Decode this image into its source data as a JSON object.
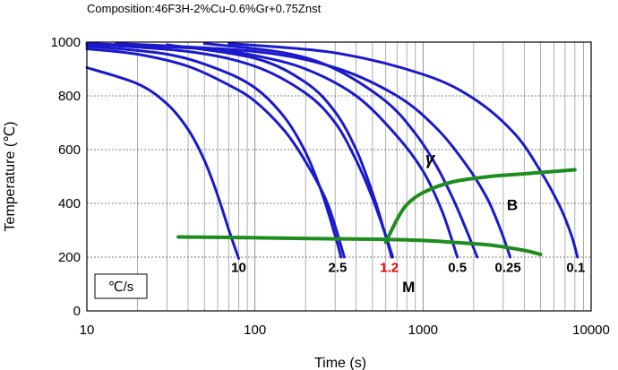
{
  "chart_data": {
    "type": "line",
    "title": "Composition:46F3H-2%Cu-0.6%Gr+0.75Znst",
    "xlabel": "Time (s)",
    "ylabel": "Temperature (℃)",
    "x_scale": "log",
    "xlim": [
      10,
      10000
    ],
    "ylim": [
      0,
      1000
    ],
    "x_ticks": [
      {
        "value": 10,
        "label": "10"
      },
      {
        "value": 100,
        "label": "100"
      },
      {
        "value": 1000,
        "label": "1000"
      },
      {
        "value": 10000,
        "label": "10000"
      }
    ],
    "y_ticks": [
      {
        "value": 0,
        "label": "0"
      },
      {
        "value": 200,
        "label": "200"
      },
      {
        "value": 400,
        "label": "400"
      },
      {
        "value": 600,
        "label": "600"
      },
      {
        "value": 800,
        "label": "800"
      },
      {
        "value": 1000,
        "label": "1000"
      }
    ],
    "grid": true,
    "cooling_unit_label": "℃/s",
    "cooling_curves": [
      {
        "rate": "10",
        "color": "#1a1acc",
        "x": [
          10,
          20,
          30,
          40,
          50,
          60,
          70,
          80
        ],
        "y": [
          905,
          845,
          770,
          675,
          560,
          430,
          300,
          195
        ]
      },
      {
        "rate": "2.5",
        "color": "#1a1acc",
        "x": [
          10,
          30,
          60,
          100,
          150,
          200,
          250,
          300,
          325
        ],
        "y": [
          985,
          955,
          900,
          830,
          720,
          590,
          440,
          280,
          200
        ]
      },
      {
        "rate": "1.2",
        "color": "#1a1acc",
        "x": [
          10,
          40,
          100,
          200,
          300,
          400,
          500,
          600,
          660
        ],
        "y": [
          993,
          965,
          910,
          810,
          700,
          560,
          420,
          280,
          200
        ]
      },
      {
        "rate": "0.5",
        "color": "#1a1acc",
        "x": [
          10,
          50,
          100,
          200,
          400,
          700,
          1000,
          1300,
          1600
        ],
        "y": [
          995,
          975,
          950,
          900,
          800,
          650,
          520,
          370,
          200
        ]
      },
      {
        "rate": "0.25",
        "color": "#1a1acc",
        "x": [
          15,
          100,
          300,
          700,
          1200,
          1800,
          2400,
          2900,
          3300
        ],
        "y": [
          995,
          965,
          905,
          800,
          680,
          545,
          420,
          300,
          200
        ]
      },
      {
        "rate": "0.1",
        "color": "#1a1acc",
        "x": [
          70,
          300,
          1000,
          2000,
          3500,
          5000,
          6500,
          7600,
          8300
        ],
        "y": [
          995,
          960,
          880,
          790,
          660,
          520,
          390,
          285,
          200
        ]
      },
      {
        "rate": "",
        "color": "#1a1acc",
        "x": [
          10,
          20,
          40,
          70,
          100,
          150,
          200,
          270,
          340
        ],
        "y": [
          975,
          955,
          910,
          840,
          780,
          670,
          555,
          400,
          200
        ]
      },
      {
        "rate": "",
        "color": "#1a1acc",
        "x": [
          50,
          150,
          300,
          600,
          900,
          1200,
          1500,
          1800,
          2100
        ],
        "y": [
          995,
          960,
          900,
          780,
          660,
          540,
          420,
          305,
          200
        ]
      },
      {
        "rate": "",
        "color": "#1a1acc",
        "x": [
          30,
          100,
          200,
          300,
          400,
          500,
          580,
          650
        ],
        "y": [
          990,
          940,
          850,
          740,
          600,
          440,
          310,
          200
        ]
      }
    ],
    "rate_labels": [
      {
        "text": "10",
        "x": 80,
        "y": 145,
        "color": "#000000"
      },
      {
        "text": "2.5",
        "x": 310,
        "y": 145,
        "color": "#000000"
      },
      {
        "text": "1.2",
        "x": 630,
        "y": 145,
        "color": "#e00000"
      },
      {
        "text": "0.5",
        "x": 1600,
        "y": 145,
        "color": "#000000"
      },
      {
        "text": "0.25",
        "x": 3200,
        "y": 145,
        "color": "#000000"
      },
      {
        "text": "0.1",
        "x": 8100,
        "y": 145,
        "color": "#000000"
      }
    ],
    "phase_boundaries": [
      {
        "name": "bainite-start",
        "color": "#1e8c1e",
        "x": [
          600,
          700,
          800,
          1000,
          1500,
          2500,
          4000,
          8000
        ],
        "y": [
          255,
          340,
          395,
          440,
          480,
          500,
          510,
          525
        ]
      },
      {
        "name": "martensite-start",
        "color": "#1e8c1e",
        "x": [
          35,
          100,
          300,
          600,
          1000,
          1500,
          2500,
          4000,
          5000
        ],
        "y": [
          275,
          272,
          268,
          266,
          262,
          255,
          245,
          225,
          210
        ]
      }
    ],
    "phase_labels": [
      {
        "text": "γ",
        "x": 1100,
        "y": 545
      },
      {
        "text": "B",
        "x": 3400,
        "y": 375
      },
      {
        "text": "M",
        "x": 820,
        "y": 70
      }
    ]
  }
}
